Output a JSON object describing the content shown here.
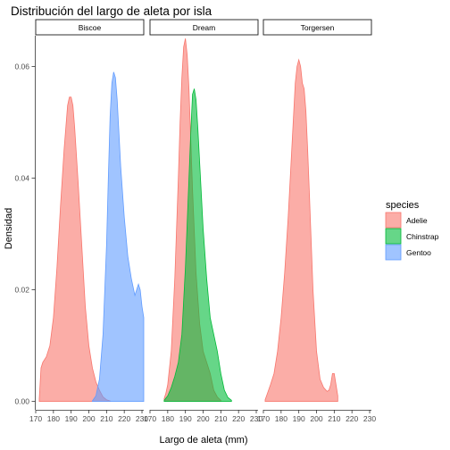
{
  "chart_data": {
    "type": "area",
    "title": "Distribución del largo de aleta por isla",
    "xlabel": "Largo de aleta (mm)",
    "ylabel": "Densidad",
    "xlim": [
      170,
      231
    ],
    "ylim": [
      -0.0015,
      0.0655
    ],
    "x_ticks": [
      "170",
      "180",
      "190",
      "200",
      "210",
      "220",
      "230"
    ],
    "y_ticks": [
      "0.00",
      "0.02",
      "0.04",
      "0.06"
    ],
    "legend": {
      "title": "species",
      "position": "right",
      "items": [
        {
          "label": "Adelie",
          "fill": "#F8766D",
          "stroke": "#F8766D"
        },
        {
          "label": "Chinstrap",
          "fill": "#00BA38",
          "stroke": "#00BA38"
        },
        {
          "label": "Gentoo",
          "fill": "#619CFF",
          "stroke": "#619CFF"
        }
      ]
    },
    "facets": [
      {
        "label": "Biscoe",
        "series": [
          {
            "name": "Adelie",
            "x": [
              172,
              173,
              174,
              176,
              178,
              180,
              182,
              184,
              186,
              188,
              189,
              190,
              191,
              192,
              194,
              196,
              198,
              200,
              202,
              204,
              206,
              208,
              210,
              212
            ],
            "y": [
              0.0005,
              0.006,
              0.007,
              0.008,
              0.01,
              0.015,
              0.024,
              0.035,
              0.045,
              0.053,
              0.0545,
              0.0545,
              0.053,
              0.049,
              0.039,
              0.028,
              0.017,
              0.01,
              0.006,
              0.0035,
              0.002,
              0.0008,
              0.0003,
              0.0001
            ]
          },
          {
            "name": "Gentoo",
            "x": [
              202,
              204,
              206,
              208,
              210,
              211,
              212,
              213,
              214,
              215,
              216,
              217,
              218,
              220,
              222,
              224,
              226,
              227,
              228,
              229,
              230,
              231
            ],
            "y": [
              0.0001,
              0.001,
              0.004,
              0.012,
              0.028,
              0.04,
              0.051,
              0.057,
              0.059,
              0.058,
              0.054,
              0.048,
              0.042,
              0.033,
              0.026,
              0.022,
              0.019,
              0.02,
              0.021,
              0.02,
              0.017,
              0.015
            ]
          }
        ]
      },
      {
        "label": "Dream",
        "series": [
          {
            "name": "Adelie",
            "x": [
              178,
              179,
              180,
              182,
              184,
              186,
              187,
              188,
              189,
              190,
              191,
              192,
              193,
              194,
              196,
              198,
              200,
              202,
              204,
              206,
              208,
              210
            ],
            "y": [
              0.0005,
              0.0015,
              0.003,
              0.009,
              0.022,
              0.04,
              0.05,
              0.058,
              0.0635,
              0.065,
              0.062,
              0.056,
              0.047,
              0.038,
              0.023,
              0.014,
              0.009,
              0.007,
              0.005,
              0.002,
              0.0008,
              0.0002
            ]
          },
          {
            "name": "Chinstrap",
            "x": [
              178,
              180,
              182,
              184,
              186,
              188,
              190,
              192,
              193,
              194,
              195,
              196,
              197,
              198,
              200,
              202,
              204,
              206,
              208,
              210,
              212,
              214,
              216
            ],
            "y": [
              0.0002,
              0.001,
              0.0025,
              0.0045,
              0.007,
              0.012,
              0.024,
              0.04,
              0.048,
              0.055,
              0.056,
              0.054,
              0.049,
              0.043,
              0.031,
              0.022,
              0.015,
              0.012,
              0.009,
              0.005,
              0.002,
              0.0007,
              0.0002
            ]
          }
        ]
      },
      {
        "label": "Torgersen",
        "series": [
          {
            "name": "Adelie",
            "x": [
              171,
              172,
              174,
              176,
              178,
              180,
              182,
              184,
              186,
              188,
              189,
              190,
              191,
              192,
              193,
              194,
              195,
              196,
              198,
              200,
              202,
              204,
              206,
              207,
              208,
              209,
              210,
              211,
              212
            ],
            "y": [
              0.0003,
              0.0012,
              0.003,
              0.005,
              0.009,
              0.015,
              0.023,
              0.033,
              0.045,
              0.057,
              0.06,
              0.0612,
              0.06,
              0.057,
              0.056,
              0.052,
              0.045,
              0.037,
              0.02,
              0.009,
              0.004,
              0.0025,
              0.0018,
              0.002,
              0.003,
              0.005,
              0.005,
              0.003,
              0.001
            ]
          }
        ]
      }
    ]
  }
}
